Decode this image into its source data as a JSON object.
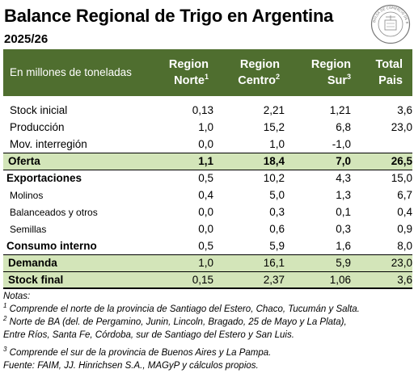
{
  "header": {
    "title": "Balance Regional de Trigo en Argentina",
    "season": "2025/26",
    "seal_text": "BOLSA DE COMERCIO DE ROSARIO"
  },
  "table": {
    "unit_label": "En millones de toneladas",
    "columns": [
      {
        "line1": "Region",
        "line2": "Norte",
        "sup": "1"
      },
      {
        "line1": "Region",
        "line2": "Centro",
        "sup": "2"
      },
      {
        "line1": "Region",
        "line2": "Sur",
        "sup": "3"
      },
      {
        "line1": "Total",
        "line2": "Pais",
        "sup": ""
      }
    ],
    "rows": {
      "stock_inicial": {
        "label": "Stock inicial",
        "values": [
          "0,13",
          "2,21",
          "1,21",
          "3,6"
        ]
      },
      "produccion": {
        "label": "Producción",
        "values": [
          "1,0",
          "15,2",
          "6,8",
          "23,0"
        ]
      },
      "mov": {
        "label": "Mov. interregión",
        "values": [
          "0,0",
          "1,0",
          "-1,0",
          ""
        ]
      },
      "oferta": {
        "label": "Oferta",
        "values": [
          "1,1",
          "18,4",
          "7,0",
          "26,5"
        ]
      },
      "exportaciones": {
        "label": "Exportaciones",
        "values": [
          "0,5",
          "10,2",
          "4,3",
          "15,0"
        ]
      },
      "molinos": {
        "label": "Molinos",
        "values": [
          "0,4",
          "5,0",
          "1,3",
          "6,7"
        ]
      },
      "balanceados": {
        "label": "Balanceados y otros",
        "values": [
          "0,0",
          "0,3",
          "0,1",
          "0,4"
        ]
      },
      "semillas": {
        "label": "Semillas",
        "values": [
          "0,0",
          "0,6",
          "0,3",
          "0,9"
        ]
      },
      "consumo": {
        "label": "Consumo interno",
        "values": [
          "0,5",
          "5,9",
          "1,6",
          "8,0"
        ]
      },
      "demanda": {
        "label": "Demanda",
        "values": [
          "1,0",
          "16,1",
          "5,9",
          "23,0"
        ]
      },
      "stock_final": {
        "label": "Stock final",
        "values": [
          "0,15",
          "2,37",
          "1,06",
          "3,6"
        ]
      }
    }
  },
  "notes": {
    "heading": "Notas:",
    "n1_sup": "1",
    "n1": "Comprende el norte de la provincia de Santiago del Estero, Chaco, Tucumán y Salta.",
    "n2_sup": "2",
    "n2a": "Norte de BA (del. de Pergamino, Junin, Lincoln, Bragado, 25 de Mayo y La Plata),",
    "n2b": "Entre Ríos, Santa Fe, Córdoba, sur de Santiago del Estero y San Luis.",
    "n3_sup": "3",
    "n3": "Comprende el sur de la provincia de Buenos Aires y La Pampa.",
    "source": "Fuente: FAIM, JJ. Hinrichsen S.A., MAGyP y cálculos propios."
  }
}
